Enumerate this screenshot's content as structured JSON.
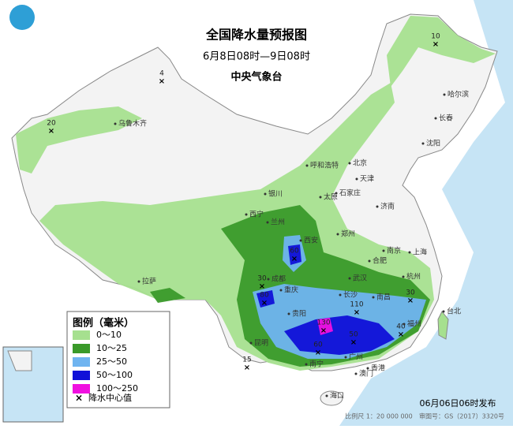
{
  "header": {
    "title": "全国降水量预报图",
    "subtitle": "6月8日08时—9日08时",
    "issuer": "中央气象台"
  },
  "legend": {
    "title": "图例（毫米）",
    "items": [
      {
        "label": "0～10",
        "color": "#a6e08f"
      },
      {
        "label": "10～25",
        "color": "#3a9a2a"
      },
      {
        "label": "25～50",
        "color": "#6fb4f0"
      },
      {
        "label": "50～100",
        "color": "#1010d8"
      },
      {
        "label": "100～250",
        "color": "#f010e0"
      }
    ],
    "center_label": "降水中心值"
  },
  "centers": [
    20,
    4,
    10,
    60,
    30,
    80,
    110,
    30,
    130,
    50,
    40,
    60,
    15
  ],
  "cities": [
    "乌鲁木齐",
    "哈尔滨",
    "长春",
    "沈阳",
    "呼和浩特",
    "北京",
    "天津",
    "银川",
    "太原",
    "石家庄",
    "济南",
    "西宁",
    "兰州",
    "郑州",
    "西安",
    "合肥",
    "南京",
    "上海",
    "杭州",
    "成都",
    "武汉",
    "重庆",
    "长沙",
    "南昌",
    "福州",
    "台北",
    "贵阳",
    "拉萨",
    "昆明",
    "南宁",
    "广州",
    "香港",
    "澳门",
    "海口"
  ],
  "footer": {
    "issued": "06月06日06时发布",
    "scale": "比例尺 1：20 000 000",
    "map_no": "审图号：GS（2017）3320号"
  }
}
